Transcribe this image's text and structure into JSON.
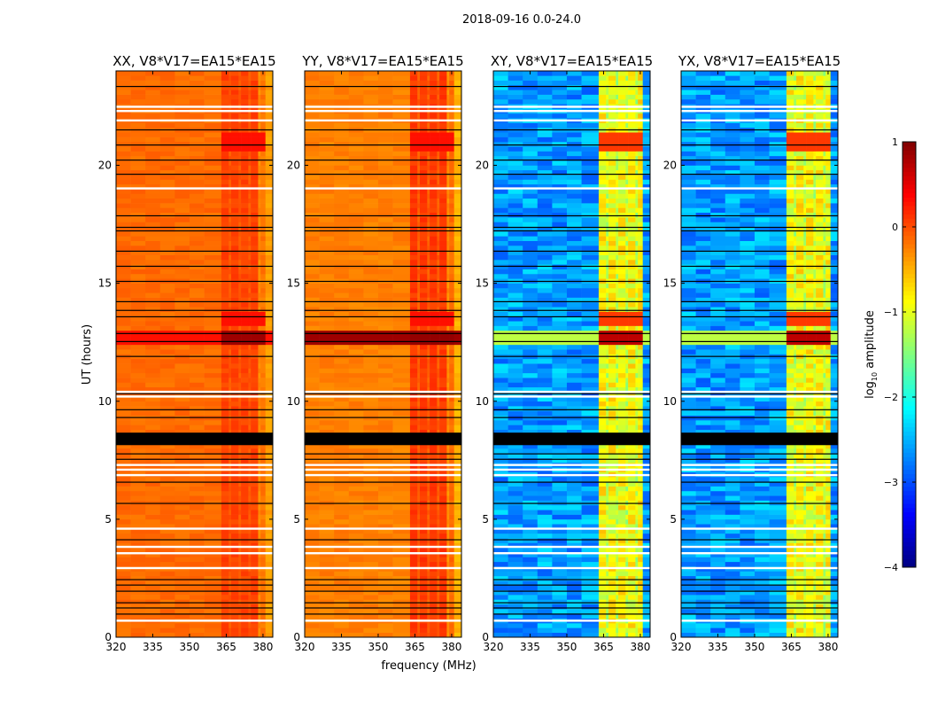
{
  "chart_data": {
    "type": "heatmap",
    "title": "2018-09-16 0.0-24.0",
    "xlabel": "frequency (MHz)",
    "ylabel": "UT (hours)",
    "xlim": [
      320,
      384
    ],
    "ylim": [
      0,
      24
    ],
    "xticks": [
      320,
      335,
      350,
      365,
      380
    ],
    "xtick_labels": [
      "320",
      "335",
      "350",
      "365",
      "380"
    ],
    "yticks": [
      0,
      5,
      10,
      15,
      20
    ],
    "ytick_labels": [
      "0",
      "5",
      "10",
      "15",
      "20"
    ],
    "colorbar": {
      "label_main": "log",
      "label_sub": "10",
      "label_rest": " amplitude",
      "range": [
        -4,
        1
      ],
      "ticks": [
        1,
        0,
        -1,
        -2,
        -3,
        -4
      ],
      "tick_labels": [
        "1",
        "0",
        "−1",
        "−2",
        "−3",
        "−4"
      ],
      "colormap": "jet"
    },
    "panels": [
      {
        "title": "XX, V8*V17=EA15*EA15",
        "base_log_amp": -0.15,
        "rfi_log_amp": 0.05,
        "rfi_event_log_amp": 0.85
      },
      {
        "title": "YY, V8*V17=EA15*EA15",
        "base_log_amp": -0.25,
        "rfi_log_amp": 0.1,
        "rfi_event_log_amp": 0.9
      },
      {
        "title": "XY, V8*V17=EA15*EA15",
        "base_log_amp": -2.6,
        "rfi_log_amp": -0.9,
        "rfi_event_log_amp": 0.7
      },
      {
        "title": "YX, V8*V17=EA15*EA15",
        "base_log_amp": -2.6,
        "rfi_log_amp": -0.9,
        "rfi_event_log_amp": 0.7
      }
    ],
    "rfi_band_mhz": [
      363,
      381
    ],
    "rfi_event_hours": [
      12.3,
      12.95
    ],
    "flagged_black_hours": [
      23.34,
      21.5,
      20.86,
      20.22,
      19.62,
      17.86,
      17.37,
      17.22,
      16.36,
      15.72,
      15.08,
      14.22,
      13.85,
      13.58,
      12.87,
      12.53,
      11.9,
      10.32,
      9.64,
      9.31,
      7.77,
      7.54,
      6.57,
      5.67,
      4.13,
      2.44,
      2.21,
      1.95,
      1.46,
      1.24,
      0.98
    ],
    "flagged_black_band_hours": [
      8.14,
      8.67
    ],
    "flagged_white_hours": [
      22.48,
      22.3,
      21.9,
      19.02,
      10.4,
      10.2,
      7.3,
      7.1,
      6.87,
      4.6,
      3.83,
      3.56,
      2.93,
      0.7
    ]
  }
}
